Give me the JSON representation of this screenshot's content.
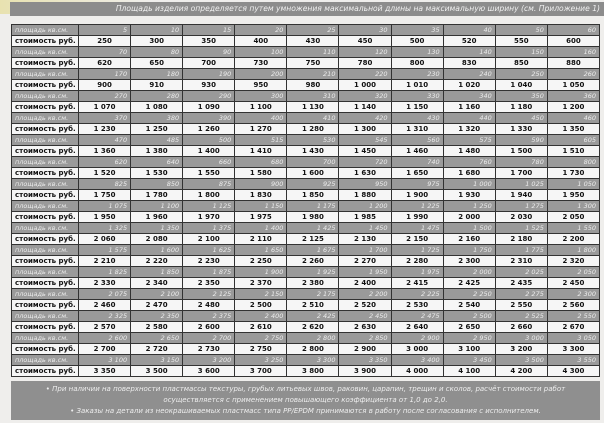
{
  "header": {
    "note": "Площадь изделия определяется путем умножения максимальной длины на максимальную ширину (см. Приложение 1)"
  },
  "labels": {
    "area": "площадь кв.см.",
    "cost": "стоимость руб."
  },
  "rows": [
    {
      "area": [
        "5",
        "10",
        "15",
        "20",
        "25",
        "30",
        "35",
        "40",
        "50",
        "60"
      ],
      "cost": [
        "250",
        "300",
        "350",
        "400",
        "430",
        "450",
        "500",
        "520",
        "550",
        "600"
      ]
    },
    {
      "area": [
        "70",
        "80",
        "90",
        "100",
        "110",
        "120",
        "130",
        "140",
        "150",
        "160"
      ],
      "cost": [
        "620",
        "650",
        "700",
        "730",
        "750",
        "780",
        "800",
        "830",
        "850",
        "880"
      ]
    },
    {
      "area": [
        "170",
        "180",
        "190",
        "200",
        "210",
        "220",
        "230",
        "240",
        "250",
        "260"
      ],
      "cost": [
        "900",
        "910",
        "930",
        "950",
        "980",
        "1 000",
        "1 010",
        "1 020",
        "1 040",
        "1 050"
      ]
    },
    {
      "area": [
        "270",
        "280",
        "290",
        "300",
        "310",
        "320",
        "330",
        "340",
        "350",
        "360"
      ],
      "cost": [
        "1 070",
        "1 080",
        "1 090",
        "1 100",
        "1 130",
        "1 140",
        "1 150",
        "1 160",
        "1 180",
        "1 200"
      ]
    },
    {
      "area": [
        "370",
        "380",
        "390",
        "400",
        "410",
        "420",
        "430",
        "440",
        "450",
        "460"
      ],
      "cost": [
        "1 230",
        "1 250",
        "1 260",
        "1 270",
        "1 280",
        "1 300",
        "1 310",
        "1 320",
        "1 330",
        "1 350"
      ]
    },
    {
      "area": [
        "470",
        "485",
        "500",
        "515",
        "530",
        "545",
        "560",
        "575",
        "590",
        "605"
      ],
      "cost": [
        "1 360",
        "1 380",
        "1 400",
        "1 410",
        "1 430",
        "1 450",
        "1 460",
        "1 480",
        "1 500",
        "1 510"
      ]
    },
    {
      "area": [
        "620",
        "640",
        "660",
        "680",
        "700",
        "720",
        "740",
        "760",
        "780",
        "800"
      ],
      "cost": [
        "1 520",
        "1 530",
        "1 550",
        "1 580",
        "1 600",
        "1 630",
        "1 650",
        "1 680",
        "1 700",
        "1 730"
      ]
    },
    {
      "area": [
        "825",
        "850",
        "875",
        "900",
        "925",
        "950",
        "975",
        "1 000",
        "1 025",
        "1 050"
      ],
      "cost": [
        "1 750",
        "1 780",
        "1 800",
        "1 830",
        "1 850",
        "1 880",
        "1 900",
        "1 930",
        "1 940",
        "1 950"
      ]
    },
    {
      "area": [
        "1 075",
        "1 100",
        "1 125",
        "1 150",
        "1 175",
        "1 200",
        "1 225",
        "1 250",
        "1 275",
        "1 300"
      ],
      "cost": [
        "1 950",
        "1 960",
        "1 970",
        "1 975",
        "1 980",
        "1 985",
        "1 990",
        "2 000",
        "2 030",
        "2 050"
      ]
    },
    {
      "area": [
        "1 325",
        "1 350",
        "1 375",
        "1 400",
        "1 425",
        "1 450",
        "1 475",
        "1 500",
        "1 525",
        "1 550"
      ],
      "cost": [
        "2 060",
        "2 080",
        "2 100",
        "2 110",
        "2 125",
        "2 130",
        "2 150",
        "2 160",
        "2 180",
        "2 200"
      ]
    },
    {
      "area": [
        "1 575",
        "1 600",
        "1 625",
        "1 650",
        "1 675",
        "1 700",
        "1 725",
        "1 750",
        "1 775",
        "1 800"
      ],
      "cost": [
        "2 210",
        "2 220",
        "2 230",
        "2 250",
        "2 260",
        "2 270",
        "2 280",
        "2 300",
        "2 310",
        "2 320"
      ]
    },
    {
      "area": [
        "1 825",
        "1 850",
        "1 875",
        "1 900",
        "1 925",
        "1 950",
        "1 975",
        "2 000",
        "2 025",
        "2 050"
      ],
      "cost": [
        "2 330",
        "2 340",
        "2 350",
        "2 370",
        "2 380",
        "2 400",
        "2 415",
        "2 425",
        "2 435",
        "2 450"
      ]
    },
    {
      "area": [
        "2 075",
        "2 100",
        "2 125",
        "2 150",
        "2 175",
        "2 200",
        "2 225",
        "2 250",
        "2 275",
        "2 300"
      ],
      "cost": [
        "2 460",
        "2 470",
        "2 480",
        "2 500",
        "2 510",
        "2 520",
        "2 530",
        "2 540",
        "2 550",
        "2 560"
      ]
    },
    {
      "area": [
        "2 325",
        "2 350",
        "2 375",
        "2 400",
        "2 425",
        "2 450",
        "2 475",
        "2 500",
        "2 525",
        "2 550"
      ],
      "cost": [
        "2 570",
        "2 580",
        "2 600",
        "2 610",
        "2 620",
        "2 630",
        "2 640",
        "2 650",
        "2 660",
        "2 670"
      ]
    },
    {
      "area": [
        "2 600",
        "2 650",
        "2 700",
        "2 750",
        "2 800",
        "2 850",
        "2 900",
        "2 950",
        "3 000",
        "3 050"
      ],
      "cost": [
        "2 700",
        "2 720",
        "2 730",
        "2 750",
        "2 800",
        "2 900",
        "3 000",
        "3 100",
        "3 200",
        "3 300"
      ]
    },
    {
      "area": [
        "3 100",
        "3 150",
        "3 200",
        "3 250",
        "3 300",
        "3 350",
        "3 400",
        "3 450",
        "3 500",
        "3 550"
      ],
      "cost": [
        "3 350",
        "3 500",
        "3 600",
        "3 700",
        "3 800",
        "3 900",
        "4 000",
        "4 100",
        "4 200",
        "4 300"
      ]
    }
  ],
  "footer": {
    "note1": "• При наличии на поверхности пластмассы текстуры, грубых литьевых швов, раковин, царапин, трещин и сколов, расчёт стоимости работ осуществляется с применением повышающего коэффициента от 1,0 до 2,0.",
    "note2": "• Заказы на детали из неокрашиваемых пластмасс типа PP/EPDM принимаются в работу после согласования с исполнителем."
  }
}
